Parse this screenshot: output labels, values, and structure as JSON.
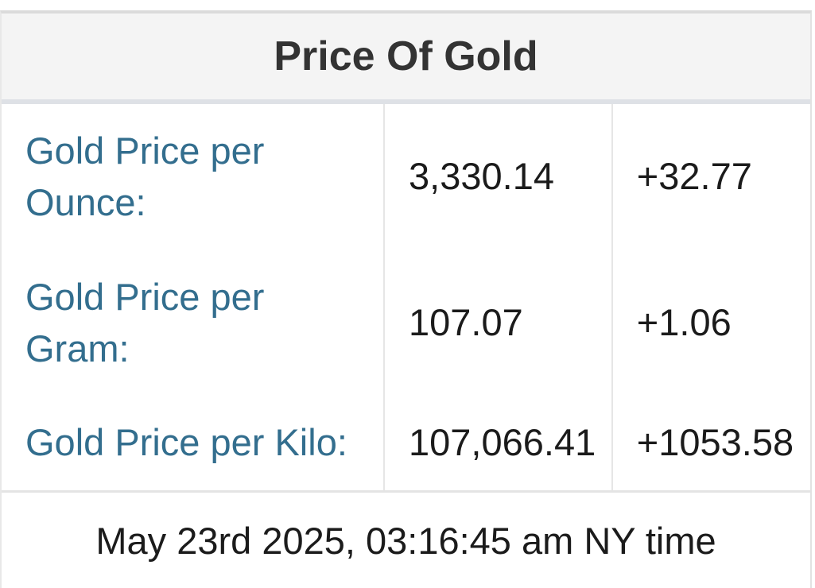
{
  "widget": {
    "title": "Price Of Gold",
    "rows": [
      {
        "label": "Gold Price per\nOunce:",
        "value": "3,330.14",
        "change": "+32.77"
      },
      {
        "label": "Gold Price per\nGram:",
        "value": "107.07",
        "change": "+1.06"
      },
      {
        "label": "Gold Price per Kilo:",
        "value": "107,066.41",
        "change": "+1053.58"
      }
    ],
    "timestamp": "May 23rd 2025, 03:16:45 am NY time"
  },
  "chart_data": {
    "type": "table",
    "title": "Price Of Gold",
    "rows": [
      {
        "label": "Gold Price per Ounce:",
        "price": 3330.14,
        "change": 32.77
      },
      {
        "label": "Gold Price per Gram:",
        "price": 107.07,
        "change": 1.06
      },
      {
        "label": "Gold Price per Kilo:",
        "price": 107066.41,
        "change": 1053.58
      }
    ],
    "footnote": "May 23rd 2025, 03:16:45 am NY time"
  },
  "colors": {
    "label_text": "#336e8e",
    "value_text": "#1b1b1b",
    "header_bg": "#f4f4f4",
    "header_text": "#333333",
    "border_light": "#e4e4e4",
    "border_header_bottom": "#dee1e6"
  }
}
